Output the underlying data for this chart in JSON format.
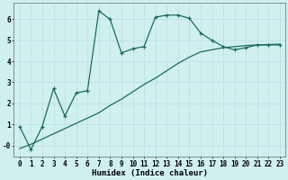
{
  "xlabel": "Humidex (Indice chaleur)",
  "bg_color": "#d0f0f0",
  "line_color": "#1a6b5a",
  "xlim": [
    -0.5,
    23.5
  ],
  "ylim": [
    -0.55,
    6.8
  ],
  "xticks": [
    0,
    1,
    2,
    3,
    4,
    5,
    6,
    7,
    8,
    9,
    10,
    11,
    12,
    13,
    14,
    15,
    16,
    17,
    18,
    19,
    20,
    21,
    22,
    23
  ],
  "yticks": [
    0,
    1,
    2,
    3,
    4,
    5,
    6
  ],
  "ytick_labels": [
    "-0",
    "1",
    "2",
    "3",
    "4",
    "5",
    "6"
  ],
  "series1_x": [
    0,
    1,
    2,
    3,
    4,
    5,
    6,
    7,
    8,
    9,
    10,
    11,
    12,
    13,
    14,
    15,
    16,
    17,
    18,
    19,
    20,
    21,
    22,
    23
  ],
  "series1_y": [
    -0.15,
    0.05,
    0.3,
    0.55,
    0.8,
    1.05,
    1.3,
    1.55,
    1.9,
    2.2,
    2.55,
    2.9,
    3.2,
    3.55,
    3.9,
    4.2,
    4.45,
    4.55,
    4.65,
    4.7,
    4.75,
    4.78,
    4.8,
    4.82
  ],
  "series2_x": [
    0,
    1,
    2,
    3,
    4,
    5,
    6,
    7,
    8,
    9,
    10,
    11,
    12,
    13,
    14,
    15,
    16,
    17,
    18,
    19,
    20,
    21,
    22,
    23
  ],
  "series2_y": [
    0.9,
    -0.2,
    0.9,
    2.7,
    1.4,
    2.5,
    2.6,
    6.4,
    6.0,
    4.4,
    4.6,
    4.7,
    6.1,
    6.2,
    6.2,
    6.05,
    5.35,
    5.0,
    4.7,
    4.55,
    4.65,
    4.78,
    4.78,
    4.78
  ],
  "grid_color": "#b8dede",
  "tick_fontsize": 5.5,
  "axis_fontsize": 6.5
}
